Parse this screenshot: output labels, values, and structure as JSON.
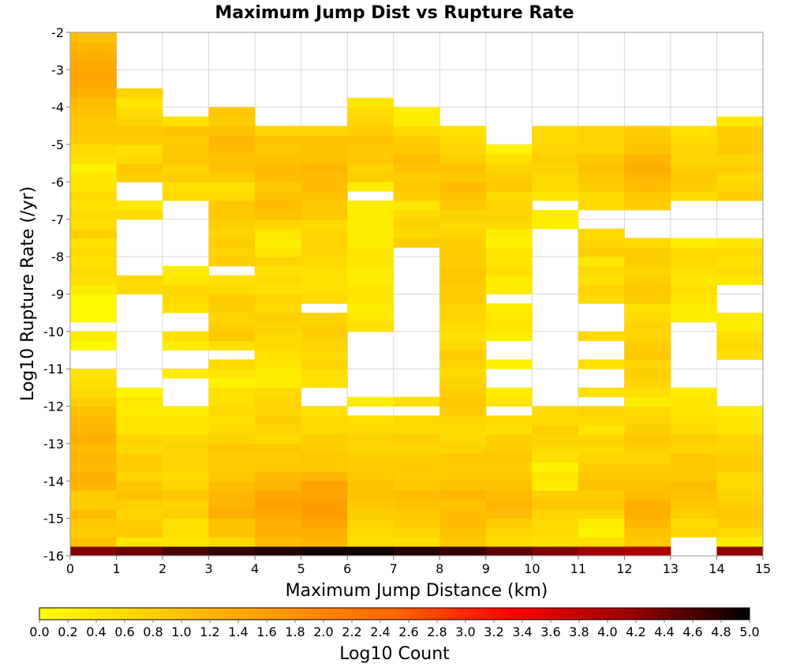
{
  "chart_data": {
    "type": "heatmap",
    "title": "Maximum Jump Dist vs Rupture Rate",
    "xlabel": "Maximum Jump Distance (km)",
    "ylabel": "Log10 Rupture Rate (/yr)",
    "xlim": [
      0,
      15
    ],
    "ylim": [
      -16,
      -2
    ],
    "x_ticks": [
      "0",
      "1",
      "2",
      "3",
      "4",
      "5",
      "6",
      "7",
      "8",
      "9",
      "10",
      "11",
      "12",
      "13",
      "14",
      "15"
    ],
    "y_ticks": [
      "-2",
      "-3",
      "-4",
      "-5",
      "-6",
      "-7",
      "-8",
      "-9",
      "-10",
      "-11",
      "-12",
      "-13",
      "-14",
      "-15",
      "-16"
    ],
    "grid": true,
    "x_bin_width": 1,
    "y_bin_height": 0.25,
    "colorbar": {
      "label": "Log10 Count",
      "range": [
        0,
        5
      ],
      "ticks": [
        "0.0",
        "0.2",
        "0.4",
        "0.6",
        "0.8",
        "1.0",
        "1.2",
        "1.4",
        "1.6",
        "1.8",
        "2.0",
        "2.2",
        "2.4",
        "2.6",
        "2.8",
        "3.0",
        "3.2",
        "3.4",
        "3.6",
        "3.8",
        "4.0",
        "4.2",
        "4.4",
        "4.6",
        "4.8",
        "5.0"
      ],
      "colors": [
        "#ffff00",
        "#ffcc00",
        "#ff9900",
        "#ff6600",
        "#ff0000",
        "#990000",
        "#000000"
      ]
    },
    "columns": [
      {
        "x": 0.5,
        "lo": -16.0,
        "values": [
          4.3,
          1.0,
          0.8,
          0.9,
          1.1,
          0.8,
          0.8,
          1.2,
          1.3,
          1.1,
          1.2,
          1.1,
          1.3,
          1.2,
          1.1,
          1.0,
          0.8,
          0.6,
          0.5,
          0.4,
          null,
          null,
          0.1,
          0.3,
          null,
          0.1,
          0.1,
          0.1,
          0.3,
          0.5,
          0.6,
          0.5,
          0.6,
          0.5,
          0.8,
          0.5,
          0.6,
          0.5,
          0.6,
          0.4,
          0.4,
          0.2,
          0.5,
          0.6,
          0.8,
          0.9,
          0.9,
          1.0,
          1.1,
          1.3,
          1.4,
          1.5,
          1.4,
          1.3,
          1.2,
          1.0
        ]
      },
      {
        "x": 1.5,
        "lo": -16.0,
        "values": [
          4.4,
          0.4,
          0.9,
          0.8,
          0.7,
          0.8,
          1.0,
          0.9,
          0.7,
          0.8,
          0.8,
          0.6,
          0.7,
          0.4,
          0.4,
          0.3,
          0.4,
          0.2,
          null,
          null,
          null,
          null,
          null,
          null,
          null,
          null,
          null,
          null,
          0.6,
          0.6,
          null,
          null,
          null,
          null,
          null,
          null,
          0.6,
          0.4,
          null,
          null,
          0.8,
          0.9,
          0.6,
          0.5,
          0.8,
          0.9,
          0.7,
          0.6,
          0.4,
          0.7
        ]
      },
      {
        "x": 2.5,
        "lo": -16.0,
        "values": [
          4.6,
          0.4,
          0.5,
          0.5,
          0.8,
          0.7,
          0.9,
          0.7,
          0.6,
          0.7,
          0.7,
          0.7,
          0.6,
          0.4,
          0.4,
          0.3,
          null,
          null,
          null,
          0.3,
          null,
          null,
          0.3,
          0.5,
          null,
          null,
          0.5,
          0.6,
          0.7,
          0.4,
          0.3,
          null,
          null,
          null,
          null,
          null,
          null,
          null,
          0.6,
          0.5,
          0.8,
          0.7,
          0.9,
          0.9,
          0.8,
          1.0,
          0.5
        ]
      },
      {
        "x": 3.5,
        "lo": -16.0,
        "values": [
          4.7,
          0.6,
          1.0,
          1.0,
          1.3,
          1.2,
          1.2,
          1.1,
          0.9,
          0.8,
          0.8,
          0.9,
          0.7,
          0.6,
          0.5,
          0.6,
          0.5,
          0.5,
          0.2,
          0.4,
          0.6,
          null,
          0.5,
          0.9,
          0.8,
          0.7,
          0.8,
          0.8,
          0.6,
          0.5,
          null,
          0.8,
          0.7,
          0.8,
          0.7,
          0.8,
          0.9,
          0.9,
          0.6,
          0.5,
          0.8,
          1.0,
          1.0,
          1.1,
          1.2,
          1.0,
          0.8,
          0.9
        ]
      },
      {
        "x": 4.5,
        "lo": -16.0,
        "values": [
          4.8,
          1.1,
          1.3,
          1.3,
          1.4,
          1.5,
          1.4,
          1.2,
          1.1,
          0.9,
          0.8,
          0.9,
          0.6,
          0.7,
          0.8,
          0.7,
          0.7,
          0.6,
          0.3,
          0.3,
          0.4,
          0.5,
          0.6,
          0.6,
          0.7,
          0.8,
          0.6,
          0.7,
          0.5,
          0.6,
          0.5,
          0.7,
          0.4,
          0.3,
          0.4,
          0.7,
          1.0,
          1.1,
          1.0,
          0.9,
          1.1,
          1.1,
          1.0,
          0.9,
          1.0,
          0.7
        ]
      },
      {
        "x": 5.5,
        "lo": -16.0,
        "values": [
          4.9,
          1.2,
          1.3,
          1.5,
          1.6,
          1.6,
          1.5,
          1.5,
          1.2,
          0.9,
          0.9,
          0.8,
          0.8,
          0.6,
          0.6,
          0.5,
          null,
          null,
          0.5,
          0.5,
          0.7,
          0.6,
          0.7,
          0.8,
          0.8,
          0.7,
          null,
          0.6,
          0.5,
          0.5,
          0.5,
          0.6,
          0.7,
          0.7,
          0.7,
          0.6,
          0.9,
          0.9,
          1.0,
          1.1,
          1.1,
          1.2,
          1.0,
          1.0,
          1.0,
          0.7
        ]
      },
      {
        "x": 6.5,
        "lo": -16.0,
        "values": [
          4.9,
          0.5,
          0.6,
          0.7,
          0.8,
          0.9,
          1.0,
          1.0,
          0.9,
          0.8,
          0.8,
          0.7,
          0.7,
          0.6,
          0.5,
          null,
          0.3,
          null,
          null,
          null,
          null,
          null,
          null,
          null,
          0.5,
          0.4,
          0.3,
          0.4,
          0.4,
          0.3,
          0.3,
          0.4,
          0.4,
          0.3,
          0.3,
          0.3,
          0.3,
          0.3,
          null,
          0.3,
          0.8,
          0.7,
          0.9,
          0.9,
          1.0,
          0.8,
          0.7,
          0.6,
          0.4
        ]
      },
      {
        "x": 7.5,
        "lo": -16.0,
        "values": [
          4.8,
          0.5,
          0.7,
          0.8,
          0.9,
          1.0,
          1.1,
          0.9,
          0.8,
          0.9,
          0.8,
          0.7,
          0.8,
          0.6,
          0.6,
          null,
          0.5,
          null,
          null,
          null,
          null,
          null,
          null,
          null,
          null,
          null,
          null,
          null,
          null,
          null,
          null,
          null,
          null,
          0.8,
          0.6,
          0.7,
          0.6,
          0.4,
          0.8,
          0.9,
          0.8,
          1.0,
          1.1,
          0.9,
          0.8,
          0.6,
          0.3,
          0.3
        ]
      },
      {
        "x": 8.5,
        "lo": -16.0,
        "values": [
          4.7,
          0.9,
          1.0,
          1.1,
          1.1,
          1.0,
          1.2,
          1.0,
          0.9,
          0.8,
          0.9,
          0.7,
          0.6,
          0.6,
          0.7,
          0.8,
          0.9,
          0.8,
          0.7,
          0.6,
          0.7,
          0.8,
          0.6,
          0.5,
          0.6,
          0.7,
          0.7,
          0.8,
          0.8,
          0.9,
          0.9,
          0.8,
          0.8,
          0.8,
          0.7,
          0.6,
          0.7,
          0.9,
          1.0,
          1.1,
          0.9,
          1.0,
          0.8,
          0.7,
          0.6,
          0.5
        ]
      },
      {
        "x": 9.5,
        "lo": -16.0,
        "values": [
          4.5,
          0.6,
          0.7,
          0.8,
          1.1,
          1.2,
          1.1,
          1.0,
          0.9,
          0.8,
          0.9,
          0.8,
          0.8,
          0.5,
          0.6,
          null,
          0.4,
          0.3,
          null,
          null,
          0.2,
          null,
          null,
          0.3,
          0.4,
          0.4,
          0.3,
          null,
          0.3,
          0.3,
          0.5,
          0.4,
          0.4,
          0.2,
          0.3,
          0.6,
          0.7,
          0.7,
          0.6,
          0.9,
          0.8,
          0.7,
          0.5,
          0.2
        ]
      },
      {
        "x": 10.5,
        "lo": -16.0,
        "values": [
          4.3,
          0.5,
          0.6,
          0.6,
          0.7,
          0.9,
          0.8,
          0.3,
          0.4,
          0.2,
          0.5,
          0.6,
          0.7,
          0.8,
          0.6,
          0.6,
          null,
          null,
          null,
          null,
          null,
          null,
          null,
          null,
          null,
          null,
          null,
          null,
          null,
          null,
          null,
          null,
          null,
          null,
          null,
          0.3,
          0.3,
          null,
          0.4,
          0.6,
          0.6,
          0.7,
          0.8,
          0.7,
          0.6,
          0.6
        ]
      },
      {
        "x": 11.5,
        "lo": -16.0,
        "values": [
          4.1,
          0.5,
          0.2,
          0.3,
          0.7,
          0.9,
          0.8,
          1.0,
          0.9,
          0.8,
          0.7,
          0.6,
          0.7,
          0.4,
          0.6,
          0.7,
          null,
          0.5,
          null,
          null,
          0.5,
          null,
          null,
          0.6,
          null,
          null,
          null,
          0.6,
          0.7,
          0.5,
          0.6,
          0.4,
          0.8,
          0.7,
          0.6,
          null,
          null,
          0.6,
          0.6,
          0.8,
          0.9,
          1.0,
          0.9,
          0.7,
          0.7,
          0.7
        ]
      },
      {
        "x": 12.5,
        "lo": -16.0,
        "values": [
          4.0,
          0.9,
          1.0,
          1.2,
          1.3,
          1.3,
          1.1,
          1.0,
          0.9,
          0.8,
          0.7,
          0.8,
          0.9,
          0.8,
          0.7,
          0.6,
          0.3,
          0.5,
          0.7,
          0.8,
          0.7,
          0.9,
          0.8,
          0.7,
          0.7,
          0.6,
          0.5,
          0.8,
          0.9,
          0.8,
          0.7,
          0.8,
          0.8,
          0.6,
          null,
          null,
          null,
          0.8,
          0.9,
          1.1,
          1.2,
          1.3,
          1.2,
          1.0,
          0.9,
          0.8
        ]
      },
      {
        "x": 13.5,
        "lo": -16.0,
        "values": [
          null,
          null,
          0.7,
          0.6,
          0.8,
          0.9,
          1.0,
          1.1,
          0.9,
          0.9,
          0.9,
          0.7,
          0.8,
          0.6,
          0.5,
          0.4,
          0.4,
          0.3,
          null,
          null,
          null,
          null,
          null,
          null,
          null,
          0.3,
          0.3,
          0.4,
          0.5,
          0.4,
          0.5,
          0.6,
          0.6,
          0.3,
          null,
          null,
          null,
          null,
          0.6,
          0.8,
          0.9,
          0.8,
          0.7,
          0.7,
          0.6,
          0.5
        ]
      },
      {
        "x": 14.5,
        "lo": -16.0,
        "values": [
          4.2,
          0.3,
          0.6,
          0.8,
          0.9,
          0.8,
          0.7,
          0.6,
          0.6,
          0.8,
          0.8,
          0.7,
          0.7,
          0.4,
          0.4,
          0.3,
          null,
          null,
          null,
          null,
          null,
          0.5,
          0.6,
          0.5,
          0.3,
          0.3,
          null,
          null,
          null,
          0.4,
          0.6,
          0.5,
          0.6,
          0.4,
          null,
          null,
          null,
          null,
          0.8,
          0.7,
          0.6,
          0.8,
          0.7,
          0.9,
          0.8,
          0.8,
          0.4
        ]
      }
    ]
  }
}
